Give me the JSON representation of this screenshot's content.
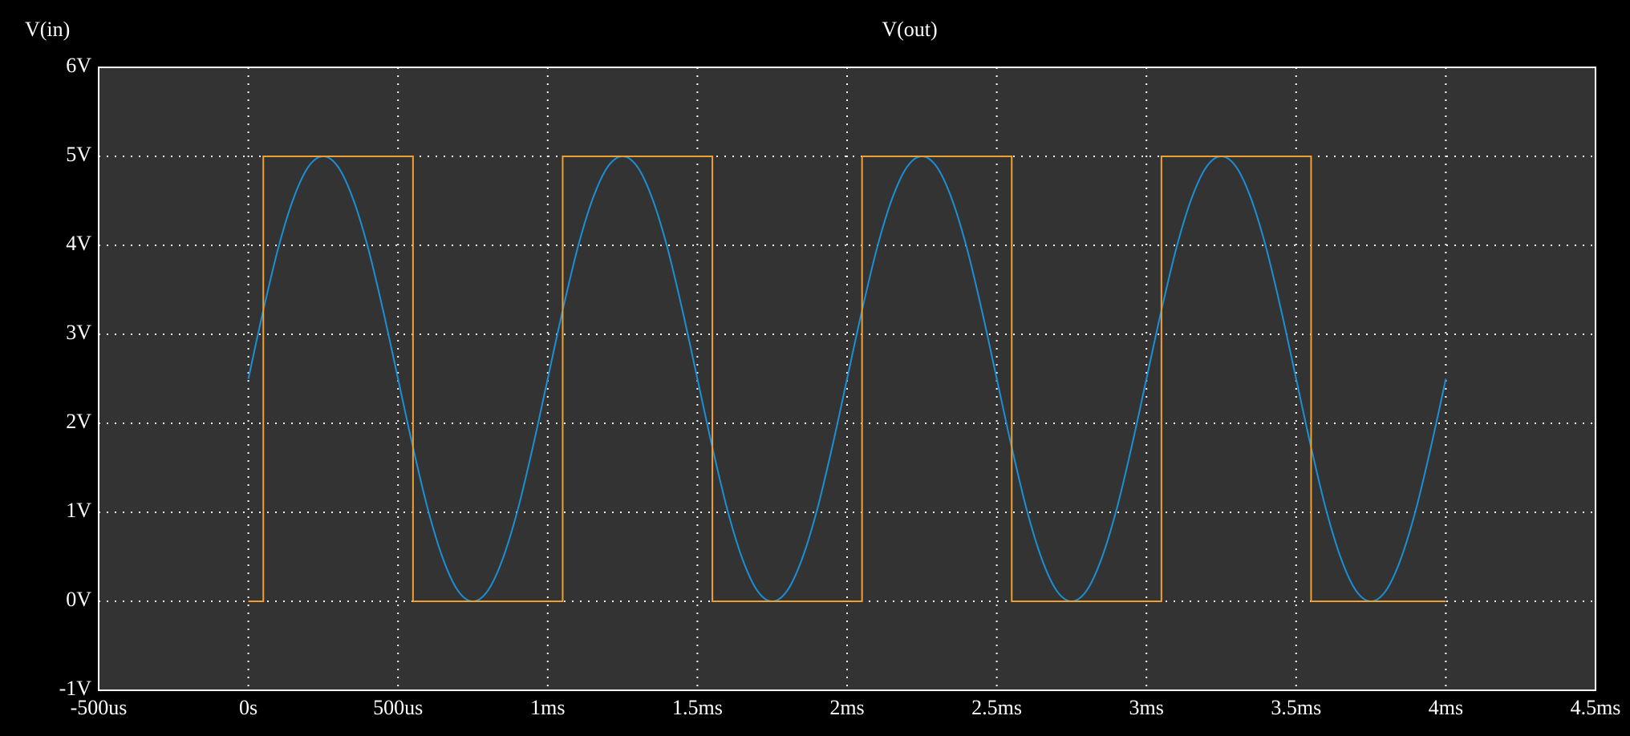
{
  "chart_data": {
    "type": "line",
    "background": "#333333",
    "grid": true,
    "xlim": [
      -0.5,
      4.5
    ],
    "xticks": [
      {
        "value": -0.5,
        "label": "-500us"
      },
      {
        "value": 0,
        "label": "0s"
      },
      {
        "value": 0.5,
        "label": "500us"
      },
      {
        "value": 1,
        "label": "1ms"
      },
      {
        "value": 1.5,
        "label": "1.5ms"
      },
      {
        "value": 2,
        "label": "2ms"
      },
      {
        "value": 2.5,
        "label": "2.5ms"
      },
      {
        "value": 3,
        "label": "3ms"
      },
      {
        "value": 3.5,
        "label": "3.5ms"
      },
      {
        "value": 4,
        "label": "4ms"
      },
      {
        "value": 4.5,
        "label": "4.5ms"
      }
    ],
    "ylim": [
      -1,
      6
    ],
    "yticks": [
      {
        "value": -1,
        "label": "-1V"
      },
      {
        "value": 0,
        "label": "0V"
      },
      {
        "value": 1,
        "label": "1V"
      },
      {
        "value": 2,
        "label": "2V"
      },
      {
        "value": 3,
        "label": "3V"
      },
      {
        "value": 4,
        "label": "4V"
      },
      {
        "value": 5,
        "label": "5V"
      },
      {
        "value": 6,
        "label": "6V"
      }
    ],
    "series": [
      {
        "name": "V(in)",
        "color": "#1a8fd6",
        "x": [
          0,
          0.05,
          0.1,
          0.15,
          0.2,
          0.25,
          0.3,
          0.35,
          0.4,
          0.45,
          0.5,
          0.55,
          0.6,
          0.65,
          0.7,
          0.75,
          0.8,
          0.85,
          0.9,
          0.95,
          1,
          1.05,
          1.1,
          1.15,
          1.2,
          1.25,
          1.3,
          1.35,
          1.4,
          1.45,
          1.5,
          1.55,
          1.6,
          1.65,
          1.7,
          1.75,
          1.8,
          1.85,
          1.9,
          1.95,
          2,
          2.05,
          2.1,
          2.15,
          2.2,
          2.25,
          2.3,
          2.35,
          2.4,
          2.45,
          2.5,
          2.55,
          2.6,
          2.65,
          2.7,
          2.75,
          2.8,
          2.85,
          2.9,
          2.95,
          3,
          3.05,
          3.1,
          3.15,
          3.2,
          3.25,
          3.3,
          3.35,
          3.4,
          3.45,
          3.5,
          3.55,
          3.6,
          3.65,
          3.7,
          3.75,
          3.8,
          3.85,
          3.9,
          3.95,
          4
        ],
        "values": [
          2.5,
          3.27,
          3.97,
          4.52,
          4.88,
          5,
          4.88,
          4.52,
          3.97,
          3.27,
          2.5,
          1.73,
          1.03,
          0.48,
          0.12,
          0,
          0.12,
          0.48,
          1.03,
          1.73,
          2.5,
          3.27,
          3.97,
          4.52,
          4.88,
          5,
          4.88,
          4.52,
          3.97,
          3.27,
          2.5,
          1.73,
          1.03,
          0.48,
          0.12,
          0,
          0.12,
          0.48,
          1.03,
          1.73,
          2.5,
          3.27,
          3.97,
          4.52,
          4.88,
          5,
          4.88,
          4.52,
          3.97,
          3.27,
          2.5,
          1.73,
          1.03,
          0.48,
          0.12,
          0,
          0.12,
          0.48,
          1.03,
          1.73,
          2.5,
          3.27,
          3.97,
          4.52,
          4.88,
          5,
          4.88,
          4.52,
          3.97,
          3.27,
          2.5,
          1.73,
          1.03,
          0.48,
          0.12,
          0,
          0.12,
          0.48,
          1.03,
          1.73,
          2.5
        ]
      },
      {
        "name": "V(out)",
        "color": "#f0a030",
        "x": [
          0,
          0.05,
          0.05,
          0.55,
          0.55,
          1.05,
          1.05,
          1.55,
          1.55,
          2.05,
          2.05,
          2.55,
          2.55,
          3.05,
          3.05,
          3.55,
          3.55,
          4
        ],
        "values": [
          0,
          0,
          5,
          5,
          0,
          0,
          5,
          5,
          0,
          0,
          5,
          5,
          0,
          0,
          5,
          5,
          0,
          0
        ]
      }
    ]
  }
}
